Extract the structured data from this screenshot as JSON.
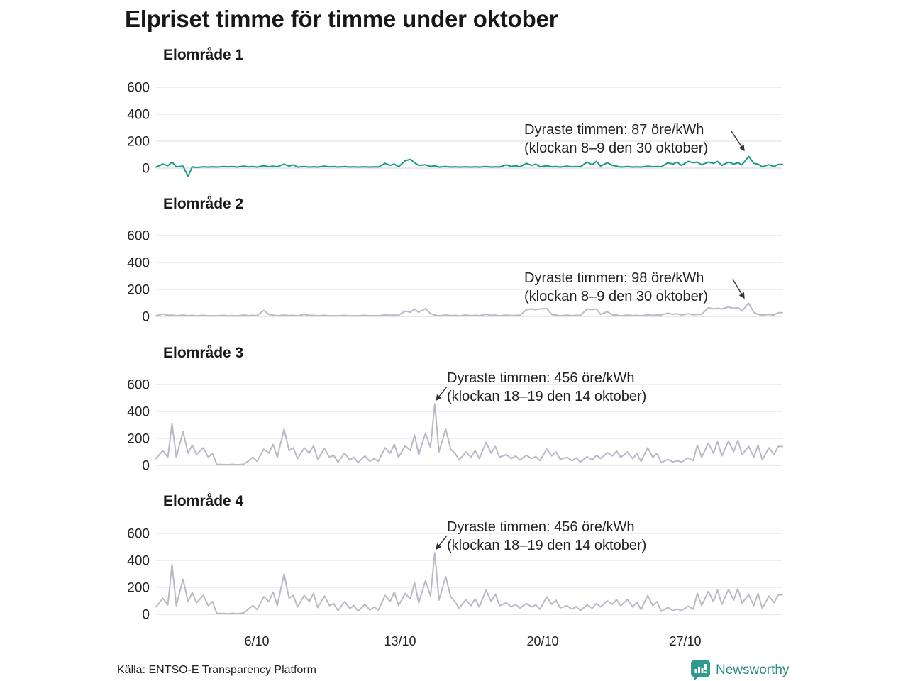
{
  "header": {
    "title": "Elpriset timme för timme under oktober"
  },
  "footer": {
    "source": "Källa: ENTSO-E Transparency Platform",
    "brand": "Newsworthy"
  },
  "colors": {
    "area1_line": "#169b82",
    "other_areas_line": "#b9b9c8",
    "grid": "#e4e4e9",
    "zero_line": "#d9d9de",
    "arrow": "#333333",
    "brand_teal": "#2f9a8f",
    "text": "#222222"
  },
  "xaxis": {
    "labels": [
      "6/10",
      "13/10",
      "20/10",
      "27/10"
    ],
    "tick_days": [
      6,
      13,
      20,
      27
    ],
    "days_total": 31
  },
  "sampling_hours": [
    0,
    8,
    14,
    19
  ],
  "chart_data": [
    {
      "type": "line",
      "title": "Elområde 1",
      "unit": "öre/kWh",
      "yticks": [
        0,
        200,
        400,
        600
      ],
      "ylim": [
        -80,
        700
      ],
      "line_color": "#169b82",
      "annotation": {
        "line1": "Dyraste timmen: 87 öre/kWh",
        "line2": "(klockan 8–9 den 30 oktober)",
        "peak_value": 87,
        "peak_day": 30,
        "peak_hours": "8–9"
      },
      "values": [
        8,
        30,
        18,
        45,
        10,
        15,
        -60,
        10,
        5,
        10,
        8,
        10,
        8,
        12,
        10,
        12,
        8,
        15,
        10,
        12,
        8,
        18,
        10,
        15,
        10,
        30,
        15,
        25,
        8,
        12,
        8,
        10,
        8,
        15,
        10,
        12,
        8,
        12,
        8,
        10,
        8,
        10,
        8,
        10,
        8,
        35,
        20,
        30,
        10,
        55,
        65,
        40,
        20,
        25,
        12,
        18,
        8,
        12,
        8,
        10,
        8,
        10,
        8,
        10,
        8,
        12,
        8,
        10,
        8,
        25,
        12,
        18,
        10,
        35,
        20,
        30,
        10,
        18,
        10,
        12,
        8,
        15,
        10,
        12,
        10,
        45,
        25,
        50,
        15,
        40,
        20,
        15,
        8,
        12,
        8,
        10,
        8,
        15,
        10,
        12,
        10,
        40,
        30,
        45,
        20,
        50,
        40,
        45,
        25,
        45,
        35,
        50,
        20,
        45,
        30,
        40,
        25,
        87,
        35,
        30,
        10,
        25,
        12,
        28
      ]
    },
    {
      "type": "line",
      "title": "Elområde 2",
      "unit": "öre/kWh",
      "yticks": [
        0,
        200,
        400,
        600
      ],
      "ylim": [
        -80,
        700
      ],
      "line_color": "#b9b9c8",
      "annotation": {
        "line1": "Dyraste timmen: 98 öre/kWh",
        "line2": "(klockan 8–9 den 30 oktober)",
        "peak_value": 98,
        "peak_day": 30,
        "peak_hours": "8–9"
      },
      "values": [
        5,
        18,
        8,
        10,
        5,
        10,
        6,
        8,
        5,
        8,
        5,
        6,
        5,
        8,
        5,
        6,
        5,
        10,
        6,
        8,
        6,
        45,
        15,
        10,
        5,
        10,
        6,
        8,
        5,
        14,
        8,
        8,
        5,
        8,
        5,
        6,
        5,
        8,
        5,
        6,
        5,
        8,
        5,
        6,
        5,
        12,
        8,
        10,
        8,
        40,
        30,
        55,
        30,
        58,
        20,
        10,
        5,
        10,
        6,
        8,
        5,
        10,
        6,
        8,
        6,
        15,
        8,
        10,
        5,
        10,
        6,
        8,
        8,
        50,
        55,
        50,
        55,
        58,
        15,
        10,
        5,
        10,
        6,
        8,
        8,
        55,
        50,
        55,
        15,
        35,
        12,
        10,
        5,
        10,
        6,
        8,
        5,
        12,
        8,
        10,
        10,
        25,
        15,
        20,
        10,
        20,
        12,
        15,
        15,
        65,
        55,
        60,
        55,
        70,
        60,
        65,
        40,
        98,
        30,
        15,
        10,
        15,
        10,
        28
      ]
    },
    {
      "type": "line",
      "title": "Elområde 3",
      "unit": "öre/kWh",
      "yticks": [
        0,
        200,
        400,
        600
      ],
      "ylim": [
        -80,
        700
      ],
      "line_color": "#b9b9c8",
      "annotation": {
        "line1": "Dyraste timmen: 456 öre/kWh",
        "line2": "(klockan 18–19 den 14 oktober)",
        "peak_value": 456,
        "peak_day": 14,
        "peak_hours": "18–19"
      },
      "values": [
        50,
        110,
        60,
        310,
        60,
        250,
        90,
        150,
        80,
        130,
        60,
        90,
        8,
        6,
        5,
        8,
        5,
        8,
        35,
        60,
        30,
        120,
        90,
        155,
        60,
        270,
        110,
        130,
        50,
        130,
        90,
        145,
        45,
        125,
        60,
        75,
        25,
        90,
        40,
        60,
        20,
        70,
        30,
        50,
        30,
        130,
        90,
        155,
        60,
        145,
        110,
        225,
        80,
        240,
        130,
        456,
        100,
        270,
        120,
        90,
        40,
        100,
        60,
        110,
        50,
        170,
        90,
        140,
        60,
        80,
        50,
        70,
        40,
        75,
        50,
        65,
        35,
        120,
        70,
        100,
        45,
        60,
        35,
        55,
        25,
        65,
        40,
        75,
        50,
        95,
        70,
        105,
        60,
        100,
        50,
        85,
        30,
        130,
        60,
        90,
        20,
        45,
        25,
        35,
        25,
        55,
        35,
        150,
        60,
        165,
        90,
        175,
        70,
        180,
        100,
        185,
        80,
        140,
        60,
        150,
        40,
        130,
        80,
        140
      ]
    },
    {
      "type": "line",
      "title": "Elområde 4",
      "unit": "öre/kWh",
      "yticks": [
        0,
        200,
        400,
        600
      ],
      "ylim": [
        -80,
        700
      ],
      "line_color": "#b9b9c8",
      "annotation": {
        "line1": "Dyraste timmen: 456 öre/kWh",
        "line2": "(klockan 18–19 den 14 oktober)",
        "peak_value": 456,
        "peak_day": 14,
        "peak_hours": "18–19"
      },
      "values": [
        55,
        120,
        70,
        370,
        65,
        260,
        95,
        160,
        85,
        140,
        65,
        95,
        8,
        6,
        5,
        8,
        5,
        10,
        40,
        65,
        35,
        130,
        95,
        165,
        65,
        300,
        120,
        140,
        55,
        140,
        95,
        155,
        50,
        135,
        65,
        80,
        28,
        95,
        45,
        65,
        22,
        75,
        32,
        55,
        32,
        140,
        95,
        165,
        65,
        155,
        115,
        235,
        85,
        250,
        135,
        456,
        105,
        280,
        130,
        95,
        45,
        110,
        65,
        115,
        55,
        180,
        95,
        150,
        65,
        85,
        55,
        75,
        45,
        80,
        55,
        70,
        38,
        130,
        75,
        105,
        48,
        65,
        38,
        58,
        28,
        70,
        45,
        80,
        55,
        100,
        75,
        110,
        65,
        110,
        55,
        90,
        35,
        140,
        65,
        95,
        22,
        50,
        28,
        40,
        28,
        60,
        38,
        155,
        65,
        170,
        95,
        180,
        75,
        185,
        105,
        190,
        85,
        145,
        65,
        155,
        45,
        135,
        85,
        145
      ]
    }
  ]
}
